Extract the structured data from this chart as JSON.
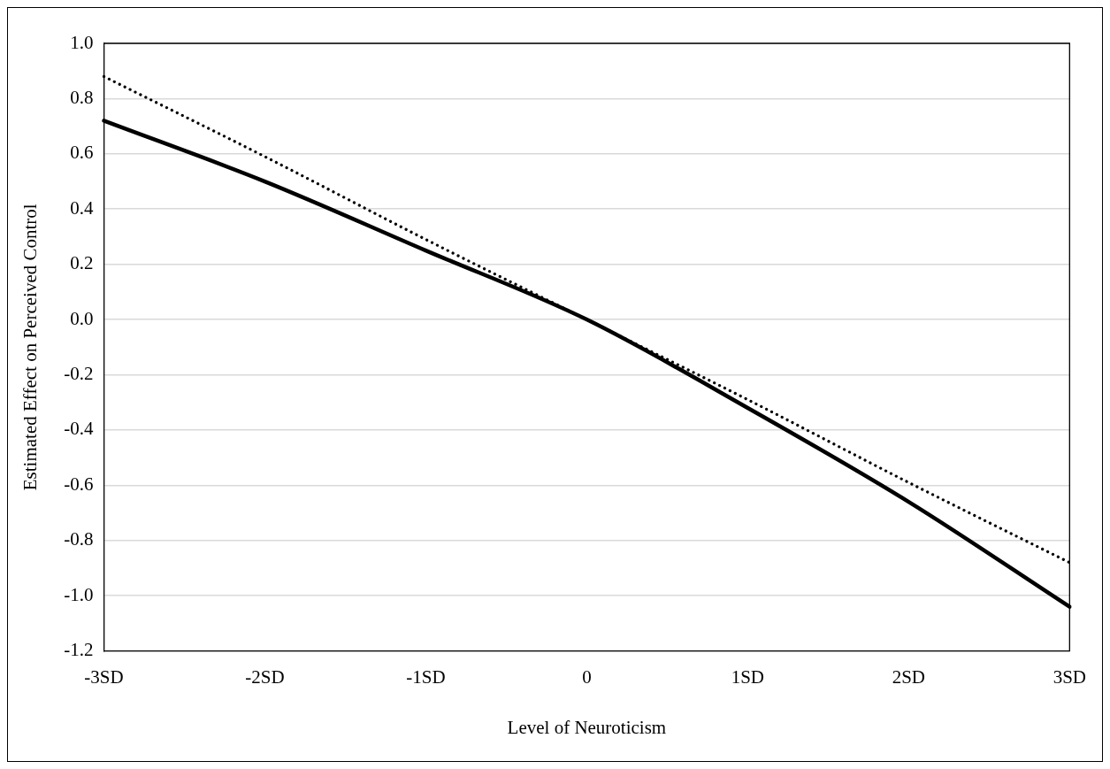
{
  "chart_data": {
    "type": "line",
    "xlabel": "Level of Neuroticism",
    "ylabel": "Estimated Effect on Perceived Control",
    "categories": [
      "-3SD",
      "-2SD",
      "-1SD",
      "0",
      "1SD",
      "2SD",
      "3SD"
    ],
    "series": [
      {
        "color": "#000000",
        "line_style": "solid",
        "values": [
          0.72,
          0.5,
          0.25,
          0,
          -0.32,
          -0.66,
          -1.04
        ]
      },
      {
        "color": "#000000",
        "line_style": "dotted",
        "values": [
          0.88,
          0.59,
          0.29,
          0,
          -0.29,
          -0.59,
          -0.88
        ]
      }
    ],
    "ylim": [
      -1.2,
      1.0
    ],
    "yticks": [
      {
        "value": -1.2,
        "label": "-1.2"
      },
      {
        "value": -1.0,
        "label": "-1.0"
      },
      {
        "value": -0.8,
        "label": "-0.8"
      },
      {
        "value": -0.6,
        "label": "-0.6"
      },
      {
        "value": -0.4,
        "label": "-0.4"
      },
      {
        "value": -0.2,
        "label": "-0.2"
      },
      {
        "value": 0,
        "label": "0.0"
      },
      {
        "value": 0.2,
        "label": "0.2"
      },
      {
        "value": 0.4,
        "label": "0.4"
      },
      {
        "value": 0.6,
        "label": "0.6"
      },
      {
        "value": 0.8,
        "label": "0.8"
      },
      {
        "value": 1.0,
        "label": "1.0"
      }
    ],
    "grid": "y",
    "legend": false,
    "marker": "none"
  }
}
